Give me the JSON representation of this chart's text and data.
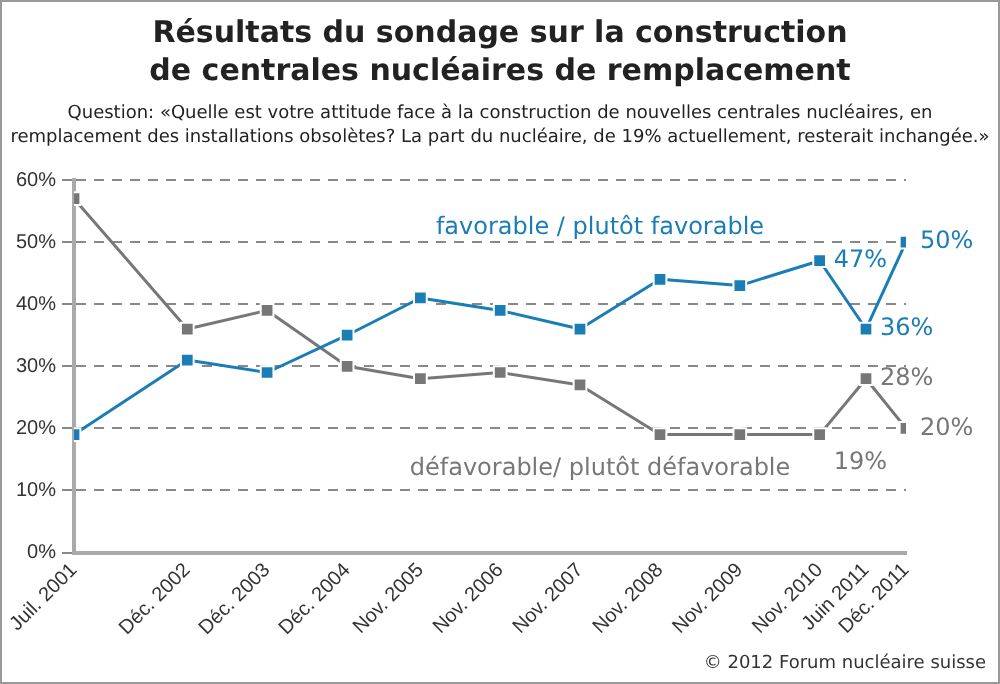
{
  "chart_data": {
    "type": "line",
    "title": "Résultats du sondage sur la construction\nde centrales nucléaires de remplacement",
    "subtitle": "Question: «Quelle est votre attitude face à la construction de nouvelles centrales nucléaires, en remplacement des installations obsolètes? La part du nucléaire, de 19% actuellement, resterait inchangée.»",
    "annotations": [
      "© 2012 Forum nucléaire suisse"
    ],
    "x": [
      "2001-07",
      "2002-12",
      "2003-12",
      "2004-12",
      "2005-11",
      "2006-11",
      "2007-11",
      "2008-11",
      "2009-11",
      "2010-11",
      "2011-06",
      "2011-12"
    ],
    "xlim": [
      "2001-07",
      "2011-12"
    ],
    "xticks": [
      {
        "value": "2001-07",
        "label": "Juil. 2001"
      },
      {
        "value": "2002-12",
        "label": "Déc. 2002"
      },
      {
        "value": "2003-12",
        "label": "Déc. 2003"
      },
      {
        "value": "2004-12",
        "label": "Déc. 2004"
      },
      {
        "value": "2005-11",
        "label": "Nov. 2005"
      },
      {
        "value": "2006-11",
        "label": "Nov. 2006"
      },
      {
        "value": "2007-11",
        "label": "Nov. 2007"
      },
      {
        "value": "2008-11",
        "label": "Nov. 2008"
      },
      {
        "value": "2009-11",
        "label": "Nov. 2009"
      },
      {
        "value": "2010-11",
        "label": "Nov. 2010"
      },
      {
        "value": "2011-06",
        "label": "Juin 2011"
      },
      {
        "value": "2011-12",
        "label": "Déc. 2011"
      }
    ],
    "ylim": [
      0,
      60
    ],
    "yticks": [
      {
        "value": 0,
        "label": "0%"
      },
      {
        "value": 10,
        "label": "10%"
      },
      {
        "value": 20,
        "label": "20%"
      },
      {
        "value": 30,
        "label": "30%"
      },
      {
        "value": 40,
        "label": "40%"
      },
      {
        "value": 50,
        "label": "50%"
      },
      {
        "value": 60,
        "label": "60%"
      }
    ],
    "series": [
      {
        "name": "favorable / plutôt favorable",
        "color": "#1a7db5",
        "values": [
          19,
          31,
          29,
          35,
          41,
          39,
          36,
          44,
          43,
          47,
          36,
          50
        ],
        "value_labels": [
          null,
          null,
          null,
          null,
          null,
          null,
          null,
          null,
          null,
          "47%",
          "36%",
          "50%"
        ]
      },
      {
        "name": "défavorable/ plutôt défavorable",
        "color": "#777777",
        "values": [
          57,
          36,
          39,
          30,
          28,
          29,
          27,
          19,
          19,
          19,
          28,
          20
        ],
        "value_labels": [
          null,
          null,
          null,
          null,
          null,
          null,
          null,
          null,
          null,
          "19%",
          "28%",
          "20%"
        ]
      }
    ],
    "grid": "y",
    "legend": false,
    "marker": "square",
    "line_style": "solid"
  }
}
